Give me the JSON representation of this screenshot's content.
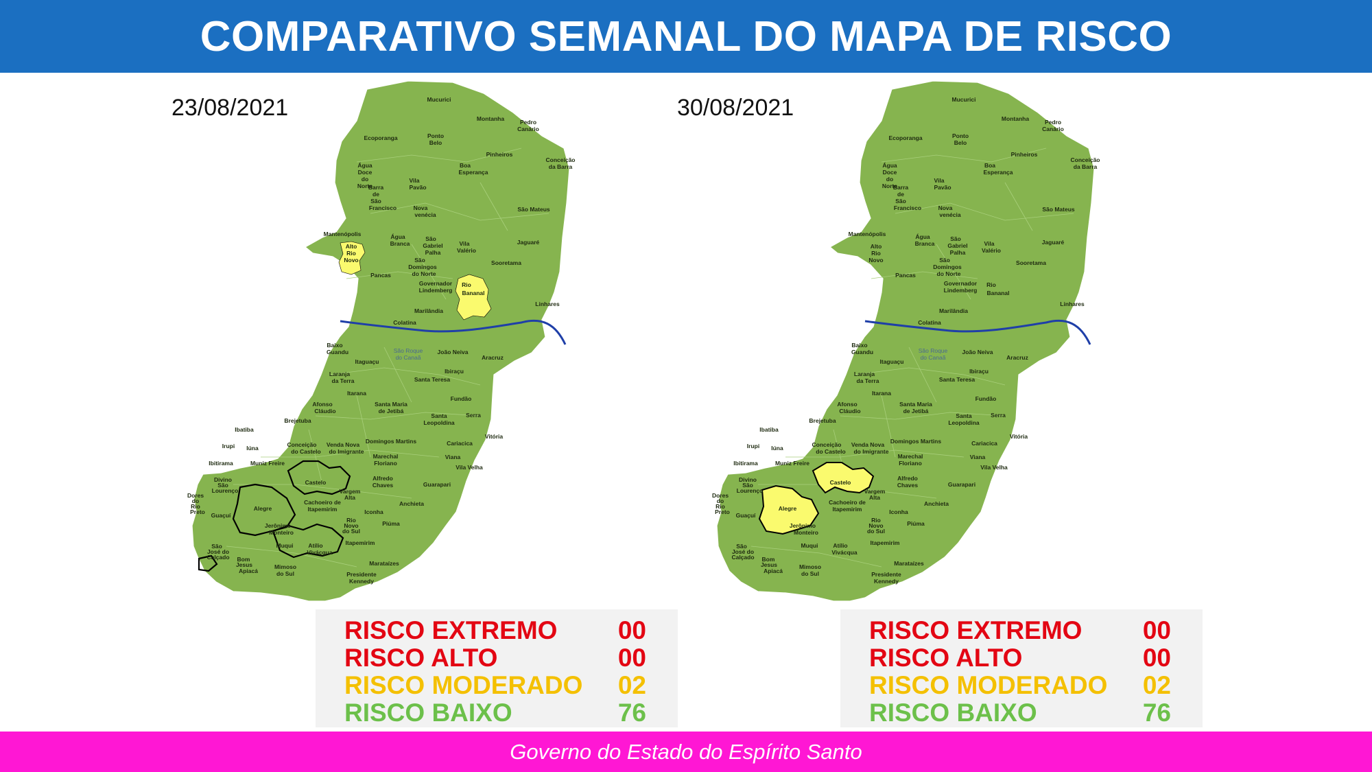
{
  "title": "COMPARATIVO SEMANAL DO MAPA DE RISCO",
  "footer": "Governo do Estado do Espírito Santo",
  "colors": {
    "header_bg": "#1b6fc1",
    "footer_bg": "#ff17d4",
    "map_green": "#86b44f",
    "moderate_yellow": "#fafa6e",
    "river": "#1f3fa8",
    "extremo": "#e30613",
    "alto": "#e30613",
    "moderado": "#f4c000",
    "baixo": "#6cc04a"
  },
  "municipalities": [
    "Mucurici",
    "Montanha",
    "Pedro Canário",
    "Ecoporanga",
    "Ponto Belo",
    "Pinheiros",
    "Conceição da Barra",
    "Água Doce do Norte",
    "Boa Esperança",
    "Vila Pavão",
    "Barra de São Francisco",
    "São Mateus",
    "Nova venécia",
    "Mantenópolis",
    "Água Branca",
    "São Gabriel Palha",
    "Vila Valério",
    "Jaguaré",
    "Alto Rio Novo",
    "Sooretama",
    "São Domingos do Norte",
    "Pancas",
    "Governador Lindemberg",
    "Rio Bananal",
    "Linhares",
    "Marilândia",
    "Colatina",
    "Baixo Guandu",
    "São Roque do Canaã",
    "João Neiva",
    "Aracruz",
    "Itaguaçu",
    "Laranja da Terra",
    "Ibiraçu",
    "Santa Teresa",
    "Itarana",
    "Fundão",
    "Afonso Cláudio",
    "Santa Maria de Jetibá",
    "Serra",
    "Brejetuba",
    "Santa Leopoldina",
    "Ibatiba",
    "Vitória",
    "Irupi",
    "Iúna",
    "Conceição do Castelo",
    "Venda Nova do Imigrante",
    "Domingos Martins",
    "Cariacica",
    "Ibitirama",
    "Muniz Freire",
    "Marechal Floriano",
    "Viana",
    "Vila Velha",
    "Divino São Lourenço",
    "Dores do Rio Preto",
    "Castelo",
    "Alfredo Chaves",
    "Vargem Alta",
    "Guarapari",
    "Guaçuí",
    "Alegre",
    "Cachoeiro de Itapemirim",
    "Jerônimo Monteiro",
    "Iconha",
    "Anchieta",
    "Rio Novo do Sul",
    "Piúma",
    "Muqui",
    "Atílio Vivácqua",
    "Itapemirim",
    "São José do Calçado",
    "Bom Jesus do Norte",
    "Apiacá",
    "Mimoso do Sul",
    "Marataízes",
    "Presidente Kennedy"
  ],
  "panels": [
    {
      "date": "23/08/2021",
      "moderate_municipalities": [
        "Alto Rio Novo",
        "Rio Bananal"
      ],
      "legend": [
        {
          "label": "RISCO EXTREMO",
          "value": "00"
        },
        {
          "label": "RISCO ALTO",
          "value": "00"
        },
        {
          "label": "RISCO MODERADO",
          "value": "02"
        },
        {
          "label": "RISCO BAIXO",
          "value": "76"
        }
      ]
    },
    {
      "date": "30/08/2021",
      "moderate_municipalities": [
        "Castelo",
        "Alegre"
      ],
      "legend": [
        {
          "label": "RISCO EXTREMO",
          "value": "00"
        },
        {
          "label": "RISCO ALTO",
          "value": "00"
        },
        {
          "label": "RISCO MODERADO",
          "value": "02"
        },
        {
          "label": "RISCO BAIXO",
          "value": "76"
        }
      ]
    }
  ]
}
